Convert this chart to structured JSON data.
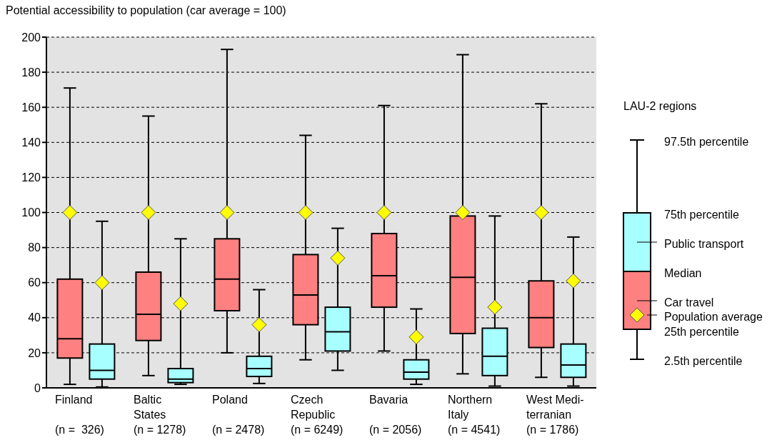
{
  "chart_data": {
    "type": "box",
    "ylabel": "Potential accessibility to population (car average = 100)",
    "legend_title": "LAU-2 regions",
    "categories": [
      "Finland\n\n(n =  326)",
      "Baltic\nStates\n(n = 1278)",
      "Poland\n\n(n = 2478)",
      "Czech\nRepublic\n(n = 6249)",
      "Bavaria\n\n(n = 2056)",
      "Northern\nItaly\n(n = 4541)",
      "West Medi-\nterranian\n(n = 1786)"
    ],
    "series": [
      {
        "name": "Car travel",
        "color": "#ff8080",
        "boxes": [
          {
            "low": 2,
            "q1": 17,
            "median": 28,
            "q3": 62,
            "high": 171,
            "mean": 100
          },
          {
            "low": 7,
            "q1": 27,
            "median": 42,
            "q3": 66,
            "high": 155,
            "mean": 100
          },
          {
            "low": 20,
            "q1": 44,
            "median": 62,
            "q3": 85,
            "high": 193,
            "mean": 100
          },
          {
            "low": 16,
            "q1": 36,
            "median": 53,
            "q3": 76,
            "high": 144,
            "mean": 100
          },
          {
            "low": 21,
            "q1": 46,
            "median": 64,
            "q3": 88,
            "high": 161,
            "mean": 100
          },
          {
            "low": 8,
            "q1": 31,
            "median": 63,
            "q3": 98,
            "high": 190,
            "mean": 100
          },
          {
            "low": 6,
            "q1": 23,
            "median": 40,
            "q3": 61,
            "high": 162,
            "mean": 100
          }
        ]
      },
      {
        "name": "Public transport",
        "color": "#a8ffff",
        "boxes": [
          {
            "low": 0.5,
            "q1": 5,
            "median": 10,
            "q3": 25,
            "high": 95,
            "mean": 60
          },
          {
            "low": 2,
            "q1": 3,
            "median": 5,
            "q3": 11,
            "high": 85,
            "mean": 48
          },
          {
            "low": 2.5,
            "q1": 6.5,
            "median": 11,
            "q3": 18,
            "high": 56,
            "mean": 36
          },
          {
            "low": 10,
            "q1": 21,
            "median": 32,
            "q3": 46,
            "high": 91,
            "mean": 74
          },
          {
            "low": 2,
            "q1": 5,
            "median": 9,
            "q3": 16,
            "high": 45,
            "mean": 29
          },
          {
            "low": 1,
            "q1": 7,
            "median": 18,
            "q3": 34,
            "high": 98,
            "mean": 46
          },
          {
            "low": 1,
            "q1": 6,
            "median": 13,
            "q3": 25,
            "high": 86,
            "mean": 61
          }
        ]
      }
    ],
    "ylim": [
      0,
      200
    ],
    "yticks": [
      0,
      20,
      40,
      60,
      80,
      100,
      120,
      140,
      160,
      180,
      200
    ],
    "grid": "y",
    "marker": "diamond",
    "legend": "right",
    "annotations": [
      "97.5th percentile",
      "75th percentile",
      "Median",
      "25th percentile",
      "2.5th percentile",
      "Population average"
    ]
  }
}
